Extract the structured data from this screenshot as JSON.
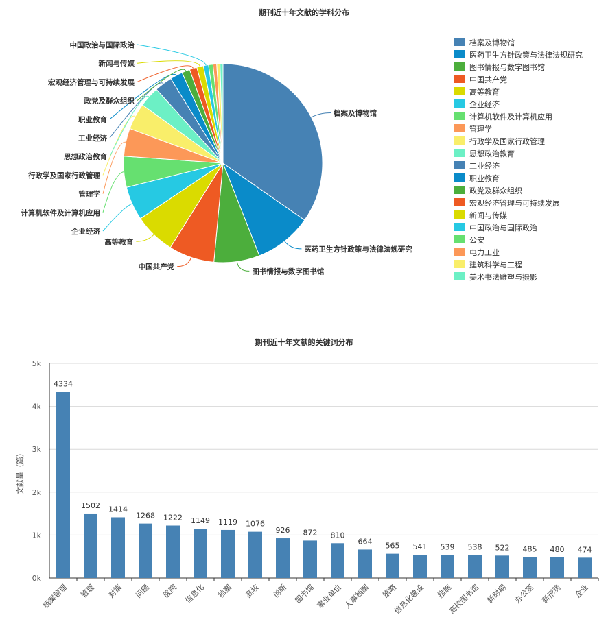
{
  "chart_data": [
    {
      "type": "pie",
      "title": "期刊近十年文献的学科分布",
      "legend_position": "right",
      "categories": [
        "档案及博物馆",
        "医药卫生方针政策与法律法规研究",
        "图书情报与数字图书馆",
        "中国共产党",
        "高等教育",
        "企业经济",
        "计算机软件及计算机应用",
        "管理学",
        "行政学及国家行政管理",
        "思想政治教育",
        "工业经济",
        "职业教育",
        "政党及群众组织",
        "宏观经济管理与可持续发展",
        "新闻与传媒",
        "中国政治与国际政治",
        "公安",
        "电力工业",
        "建筑科学与工程",
        "美术书法雕塑与摄影"
      ],
      "values": [
        2900,
        780,
        620,
        620,
        560,
        460,
        420,
        380,
        360,
        280,
        240,
        170,
        110,
        100,
        90,
        70,
        60,
        50,
        45,
        40
      ],
      "labeled": [
        "档案及博物馆",
        "医药卫生方针政策与法律法规研究",
        "图书情报与数字图书馆",
        "中国共产党",
        "高等教育",
        "企业经济",
        "计算机软件及计算机应用",
        "管理学",
        "行政学及国家行政管理",
        "思想政治教育",
        "工业经济",
        "职业教育",
        "政党及群众组织",
        "宏观经济管理与可持续发展",
        "新闻与传媒",
        "中国政治与国际政治"
      ],
      "colors": [
        "#4682b4",
        "#0a8bc9",
        "#4cae3c",
        "#ee5a23",
        "#dadb00",
        "#26c9e3",
        "#66e070",
        "#fc9858",
        "#f9ee6a",
        "#6cf0c5",
        "#4682b4",
        "#0a8bc9",
        "#4cae3c",
        "#ee5a23",
        "#dadb00",
        "#26c9e3",
        "#66e070",
        "#fc9858",
        "#f9ee6a",
        "#6cf0c5"
      ]
    },
    {
      "type": "bar",
      "title": "期刊近十年文献的关键词分布",
      "xlabel": "",
      "ylabel": "文献量（篇）",
      "ylim": [
        0,
        5000
      ],
      "yticks": [
        "0k",
        "1k",
        "2k",
        "3k",
        "4k",
        "5k"
      ],
      "grid": true,
      "color": "#4682b4",
      "categories": [
        "档案管理",
        "管理",
        "对策",
        "问题",
        "医院",
        "信息化",
        "档案",
        "高校",
        "创新",
        "图书馆",
        "事业单位",
        "人事档案",
        "策略",
        "信息化建设",
        "措施",
        "高校图书馆",
        "新时期",
        "办公室",
        "新形势",
        "企业"
      ],
      "values": [
        4334,
        1502,
        1414,
        1268,
        1222,
        1149,
        1119,
        1076,
        926,
        872,
        810,
        664,
        565,
        541,
        539,
        538,
        522,
        485,
        480,
        474
      ]
    }
  ]
}
